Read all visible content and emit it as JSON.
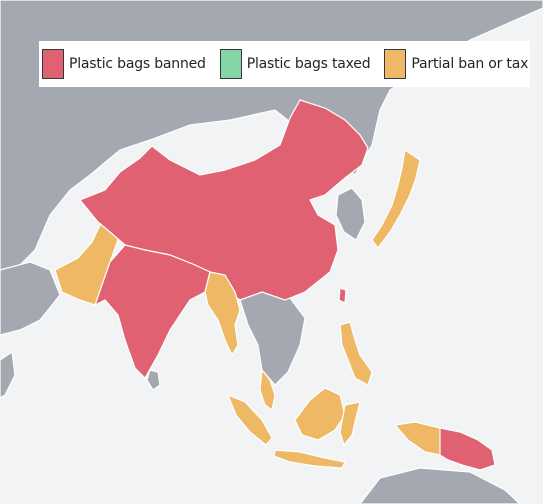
{
  "legend": {
    "items": [
      {
        "key": "banned",
        "label": "Plastic bags banned",
        "color": "#e06272"
      },
      {
        "key": "taxed",
        "label": "Plastic bags taxed",
        "color": "#85d6a6"
      },
      {
        "key": "partial",
        "label": "Partial ban or tax",
        "color": "#eeb865"
      }
    ]
  },
  "map": {
    "ocean_color": "#f2f3f4",
    "land_color": "#a3a8b1",
    "regions": [
      {
        "name": "China",
        "status": "banned"
      },
      {
        "name": "India",
        "status": "banned"
      },
      {
        "name": "Bangladesh",
        "status": "banned"
      },
      {
        "name": "Taiwan",
        "status": "banned"
      },
      {
        "name": "Papua New Guinea",
        "status": "banned"
      },
      {
        "name": "Pakistan",
        "status": "partial"
      },
      {
        "name": "Myanmar",
        "status": "partial"
      },
      {
        "name": "Japan",
        "status": "partial"
      },
      {
        "name": "Malaysia",
        "status": "partial"
      },
      {
        "name": "Indonesia",
        "status": "partial"
      },
      {
        "name": "Philippines",
        "status": "partial"
      }
    ]
  }
}
